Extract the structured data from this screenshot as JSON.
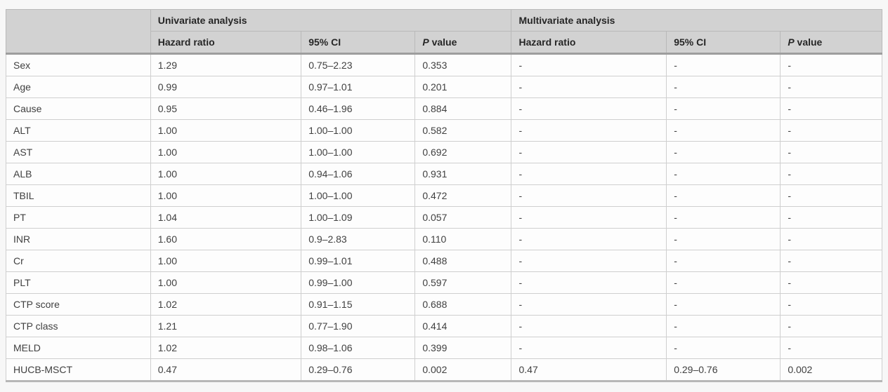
{
  "page": {
    "background": "#f7f7f7"
  },
  "colors": {
    "header_background": "#d2d2d2",
    "cell_border": "#cfcfcf",
    "header_border": "#b9b9b9",
    "thick_divider": "#9d9d9d",
    "table_bottom_border": "#b7b7b7",
    "body_text": "#404040",
    "header_text": "#262626"
  },
  "table": {
    "groups": [
      {
        "label": "Univariate analysis"
      },
      {
        "label": "Multivariate analysis"
      }
    ],
    "columns": {
      "hazard_ratio": "Hazard ratio",
      "ci": "95% CI",
      "p_italic": "P",
      "p_suffix": "value"
    },
    "rows": [
      {
        "label": "Sex",
        "univariate": {
          "hr": "1.29",
          "ci": "0.75–2.23",
          "p": "0.353"
        },
        "multivariate": {
          "hr": "-",
          "ci": "-",
          "p": "-"
        }
      },
      {
        "label": "Age",
        "univariate": {
          "hr": "0.99",
          "ci": "0.97–1.01",
          "p": "0.201"
        },
        "multivariate": {
          "hr": "-",
          "ci": "-",
          "p": "-"
        }
      },
      {
        "label": "Cause",
        "univariate": {
          "hr": "0.95",
          "ci": "0.46–1.96",
          "p": "0.884"
        },
        "multivariate": {
          "hr": "-",
          "ci": "-",
          "p": "-"
        }
      },
      {
        "label": "ALT",
        "univariate": {
          "hr": "1.00",
          "ci": "1.00–1.00",
          "p": "0.582"
        },
        "multivariate": {
          "hr": "-",
          "ci": "-",
          "p": "-"
        }
      },
      {
        "label": "AST",
        "univariate": {
          "hr": "1.00",
          "ci": "1.00–1.00",
          "p": "0.692"
        },
        "multivariate": {
          "hr": "-",
          "ci": "-",
          "p": "-"
        }
      },
      {
        "label": "ALB",
        "univariate": {
          "hr": "1.00",
          "ci": "0.94–1.06",
          "p": "0.931"
        },
        "multivariate": {
          "hr": "-",
          "ci": "-",
          "p": "-"
        }
      },
      {
        "label": "TBIL",
        "univariate": {
          "hr": "1.00",
          "ci": "1.00–1.00",
          "p": "0.472"
        },
        "multivariate": {
          "hr": "-",
          "ci": "-",
          "p": "-"
        }
      },
      {
        "label": "PT",
        "univariate": {
          "hr": "1.04",
          "ci": "1.00–1.09",
          "p": "0.057"
        },
        "multivariate": {
          "hr": "-",
          "ci": "-",
          "p": "-"
        }
      },
      {
        "label": "INR",
        "univariate": {
          "hr": "1.60",
          "ci": "0.9–2.83",
          "p": "0.110"
        },
        "multivariate": {
          "hr": "-",
          "ci": "-",
          "p": "-"
        }
      },
      {
        "label": "Cr",
        "univariate": {
          "hr": "1.00",
          "ci": "0.99–1.01",
          "p": "0.488"
        },
        "multivariate": {
          "hr": "-",
          "ci": "-",
          "p": "-"
        }
      },
      {
        "label": "PLT",
        "univariate": {
          "hr": "1.00",
          "ci": "0.99–1.00",
          "p": "0.597"
        },
        "multivariate": {
          "hr": "-",
          "ci": "-",
          "p": "-"
        }
      },
      {
        "label": "CTP score",
        "univariate": {
          "hr": "1.02",
          "ci": "0.91–1.15",
          "p": "0.688"
        },
        "multivariate": {
          "hr": "-",
          "ci": "-",
          "p": "-"
        }
      },
      {
        "label": "CTP class",
        "univariate": {
          "hr": "1.21",
          "ci": "0.77–1.90",
          "p": "0.414"
        },
        "multivariate": {
          "hr": "-",
          "ci": "-",
          "p": "-"
        }
      },
      {
        "label": "MELD",
        "univariate": {
          "hr": "1.02",
          "ci": "0.98–1.06",
          "p": "0.399"
        },
        "multivariate": {
          "hr": "-",
          "ci": "-",
          "p": "-"
        }
      },
      {
        "label": "HUCB-MSCT",
        "univariate": {
          "hr": "0.47",
          "ci": "0.29–0.76",
          "p": "0.002"
        },
        "multivariate": {
          "hr": "0.47",
          "ci": "0.29–0.76",
          "p": "0.002"
        }
      }
    ]
  }
}
